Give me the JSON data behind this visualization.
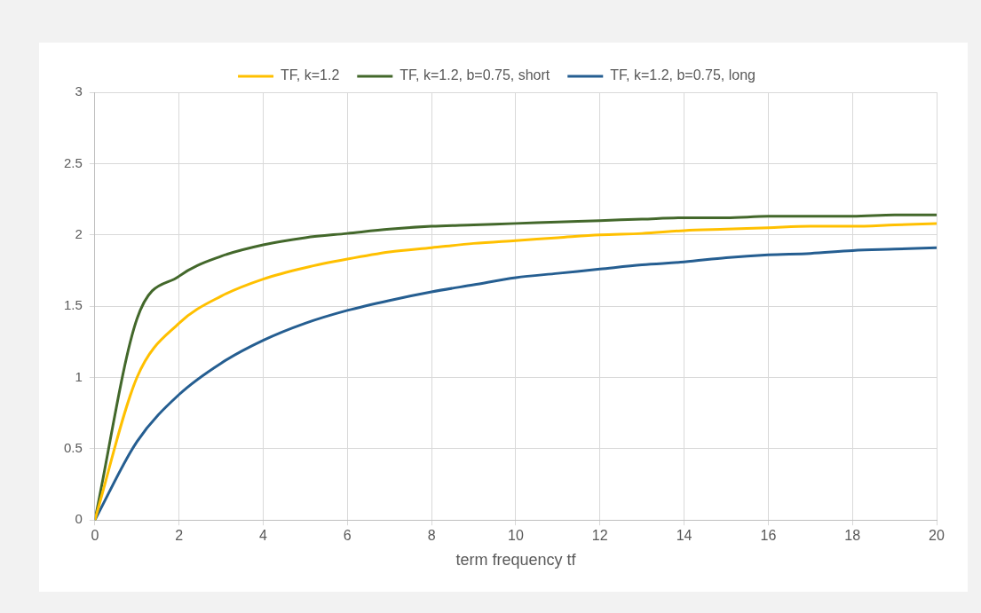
{
  "chart_data": {
    "type": "line",
    "xlabel": "term frequency tf",
    "x": [
      0,
      1,
      2,
      3,
      4,
      5,
      6,
      7,
      8,
      9,
      10,
      11,
      12,
      13,
      14,
      15,
      16,
      17,
      18,
      19,
      20
    ],
    "series": [
      {
        "name": "TF, k=1.2",
        "color": "#ffc000",
        "values": [
          0,
          1.0,
          1.38,
          1.57,
          1.69,
          1.77,
          1.83,
          1.88,
          1.91,
          1.94,
          1.96,
          1.98,
          2.0,
          2.01,
          2.03,
          2.04,
          2.05,
          2.06,
          2.06,
          2.07,
          2.08
        ]
      },
      {
        "name": "TF, k=1.2, b=0.75, short",
        "color": "#43682b",
        "values": [
          0,
          1.41,
          1.71,
          1.85,
          1.93,
          1.98,
          2.01,
          2.04,
          2.06,
          2.07,
          2.08,
          2.09,
          2.1,
          2.11,
          2.12,
          2.12,
          2.13,
          2.13,
          2.13,
          2.14,
          2.14
        ]
      },
      {
        "name": "TF, k=1.2, b=0.75, long",
        "color": "#255e91",
        "values": [
          0,
          0.55,
          0.88,
          1.1,
          1.26,
          1.38,
          1.47,
          1.54,
          1.6,
          1.65,
          1.7,
          1.73,
          1.76,
          1.79,
          1.81,
          1.84,
          1.86,
          1.87,
          1.89,
          1.9,
          1.91
        ]
      }
    ],
    "xlim": [
      0,
      20
    ],
    "xticks": [
      0,
      2,
      4,
      6,
      8,
      10,
      12,
      14,
      16,
      18,
      20
    ],
    "ylim": [
      0,
      3
    ],
    "yticks": [
      0,
      0.5,
      1,
      1.5,
      2,
      2.5,
      3
    ],
    "grid": true,
    "legend": "top",
    "marker": "none",
    "line_style": "solid"
  }
}
